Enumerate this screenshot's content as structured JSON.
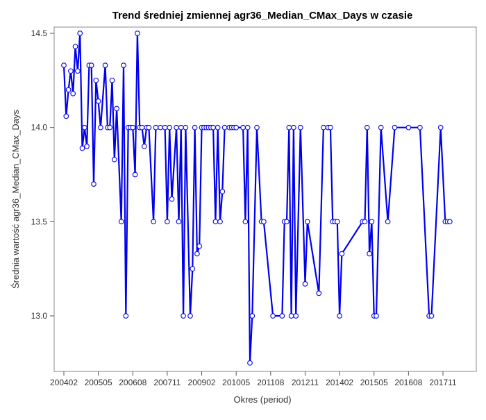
{
  "chart_data": {
    "type": "line",
    "title": "Trend średniej zmiennej agr36_Median_CMax_Days w czasie",
    "xlabel": "Okres (period)",
    "ylabel": "Średnia wartość agr36_Median_CMax_Days",
    "x_ticks": [
      "200402",
      "200505",
      "200608",
      "200711",
      "200902",
      "201005",
      "201108",
      "201211",
      "201402",
      "201505",
      "201608",
      "201711"
    ],
    "y_ticks": [
      "13.0",
      "13.5",
      "14.0",
      "14.5"
    ],
    "ylim": [
      12.75,
      14.55
    ],
    "xlim": [
      "2004-01",
      "2018-06"
    ],
    "series": [
      {
        "line_color": "#0000ee",
        "marker": "circle",
        "points": [
          [
            "2004-02",
            14.33
          ],
          [
            "2004-03",
            14.06
          ],
          [
            "2004-04",
            14.2
          ],
          [
            "2004-05",
            14.3
          ],
          [
            "2004-06",
            14.18
          ],
          [
            "2004-07",
            14.43
          ],
          [
            "2004-08",
            14.3
          ],
          [
            "2004-09",
            14.5
          ],
          [
            "2004-10",
            13.89
          ],
          [
            "2004-11",
            14.0
          ],
          [
            "2004-12",
            13.9
          ],
          [
            "2005-01",
            14.33
          ],
          [
            "2005-02",
            14.33
          ],
          [
            "2005-03",
            13.7
          ],
          [
            "2005-04",
            14.25
          ],
          [
            "2005-05",
            14.14
          ],
          [
            "2005-06",
            14.0
          ],
          [
            "2005-08",
            14.33
          ],
          [
            "2005-09",
            14.0
          ],
          [
            "2005-10",
            14.0
          ],
          [
            "2005-11",
            14.25
          ],
          [
            "2005-12",
            13.83
          ],
          [
            "2006-01",
            14.1
          ],
          [
            "2006-03",
            13.5
          ],
          [
            "2006-04",
            14.33
          ],
          [
            "2006-05",
            13.0
          ],
          [
            "2006-06",
            14.0
          ],
          [
            "2006-07",
            14.0
          ],
          [
            "2006-08",
            14.0
          ],
          [
            "2006-09",
            13.75
          ],
          [
            "2006-10",
            14.5
          ],
          [
            "2006-11",
            14.0
          ],
          [
            "2006-12",
            14.0
          ],
          [
            "2007-01",
            13.9
          ],
          [
            "2007-02",
            14.0
          ],
          [
            "2007-03",
            14.0
          ],
          [
            "2007-05",
            13.5
          ],
          [
            "2007-06",
            14.0
          ],
          [
            "2007-08",
            14.0
          ],
          [
            "2007-10",
            14.0
          ],
          [
            "2007-11",
            13.5
          ],
          [
            "2007-12",
            14.0
          ],
          [
            "2008-01",
            13.62
          ],
          [
            "2008-03",
            14.0
          ],
          [
            "2008-04",
            13.5
          ],
          [
            "2008-05",
            14.0
          ],
          [
            "2008-06",
            13.0
          ],
          [
            "2008-07",
            14.0
          ],
          [
            "2008-09",
            13.0
          ],
          [
            "2008-10",
            13.25
          ],
          [
            "2008-11",
            14.0
          ],
          [
            "2008-12",
            13.33
          ],
          [
            "2009-01",
            13.37
          ],
          [
            "2009-02",
            14.0
          ],
          [
            "2009-03",
            14.0
          ],
          [
            "2009-04",
            14.0
          ],
          [
            "2009-05",
            14.0
          ],
          [
            "2009-06",
            14.0
          ],
          [
            "2009-07",
            14.0
          ],
          [
            "2009-08",
            13.5
          ],
          [
            "2009-09",
            14.0
          ],
          [
            "2009-10",
            13.5
          ],
          [
            "2009-11",
            13.66
          ],
          [
            "2009-12",
            14.0
          ],
          [
            "2010-02",
            14.0
          ],
          [
            "2010-03",
            14.0
          ],
          [
            "2010-04",
            14.0
          ],
          [
            "2010-05",
            14.0
          ],
          [
            "2010-08",
            14.0
          ],
          [
            "2010-09",
            13.5
          ],
          [
            "2010-10",
            14.0
          ],
          [
            "2010-11",
            12.75
          ],
          [
            "2010-12",
            13.0
          ],
          [
            "2011-02",
            14.0
          ],
          [
            "2011-04",
            13.5
          ],
          [
            "2011-05",
            13.5
          ],
          [
            "2011-09",
            13.0
          ],
          [
            "2012-01",
            13.0
          ],
          [
            "2012-02",
            13.5
          ],
          [
            "2012-03",
            13.5
          ],
          [
            "2012-04",
            14.0
          ],
          [
            "2012-05",
            13.0
          ],
          [
            "2012-06",
            14.0
          ],
          [
            "2012-07",
            13.0
          ],
          [
            "2012-09",
            14.0
          ],
          [
            "2012-11",
            13.17
          ],
          [
            "2012-12",
            13.5
          ],
          [
            "2013-05",
            13.12
          ],
          [
            "2013-07",
            14.0
          ],
          [
            "2013-09",
            14.0
          ],
          [
            "2013-10",
            14.0
          ],
          [
            "2013-11",
            13.5
          ],
          [
            "2013-12",
            13.5
          ],
          [
            "2014-01",
            13.5
          ],
          [
            "2014-02",
            13.0
          ],
          [
            "2014-03",
            13.33
          ],
          [
            "2014-12",
            13.5
          ],
          [
            "2015-01",
            13.5
          ],
          [
            "2015-02",
            14.0
          ],
          [
            "2015-03",
            13.33
          ],
          [
            "2015-04",
            13.5
          ],
          [
            "2015-05",
            13.0
          ],
          [
            "2015-06",
            13.0
          ],
          [
            "2015-08",
            14.0
          ],
          [
            "2015-11",
            13.5
          ],
          [
            "2016-02",
            14.0
          ],
          [
            "2016-08",
            14.0
          ],
          [
            "2017-01",
            14.0
          ],
          [
            "2017-05",
            13.0
          ],
          [
            "2017-06",
            13.0
          ],
          [
            "2017-10",
            14.0
          ],
          [
            "2017-12",
            13.5
          ],
          [
            "2018-01",
            13.5
          ],
          [
            "2018-02",
            13.5
          ]
        ]
      }
    ]
  }
}
